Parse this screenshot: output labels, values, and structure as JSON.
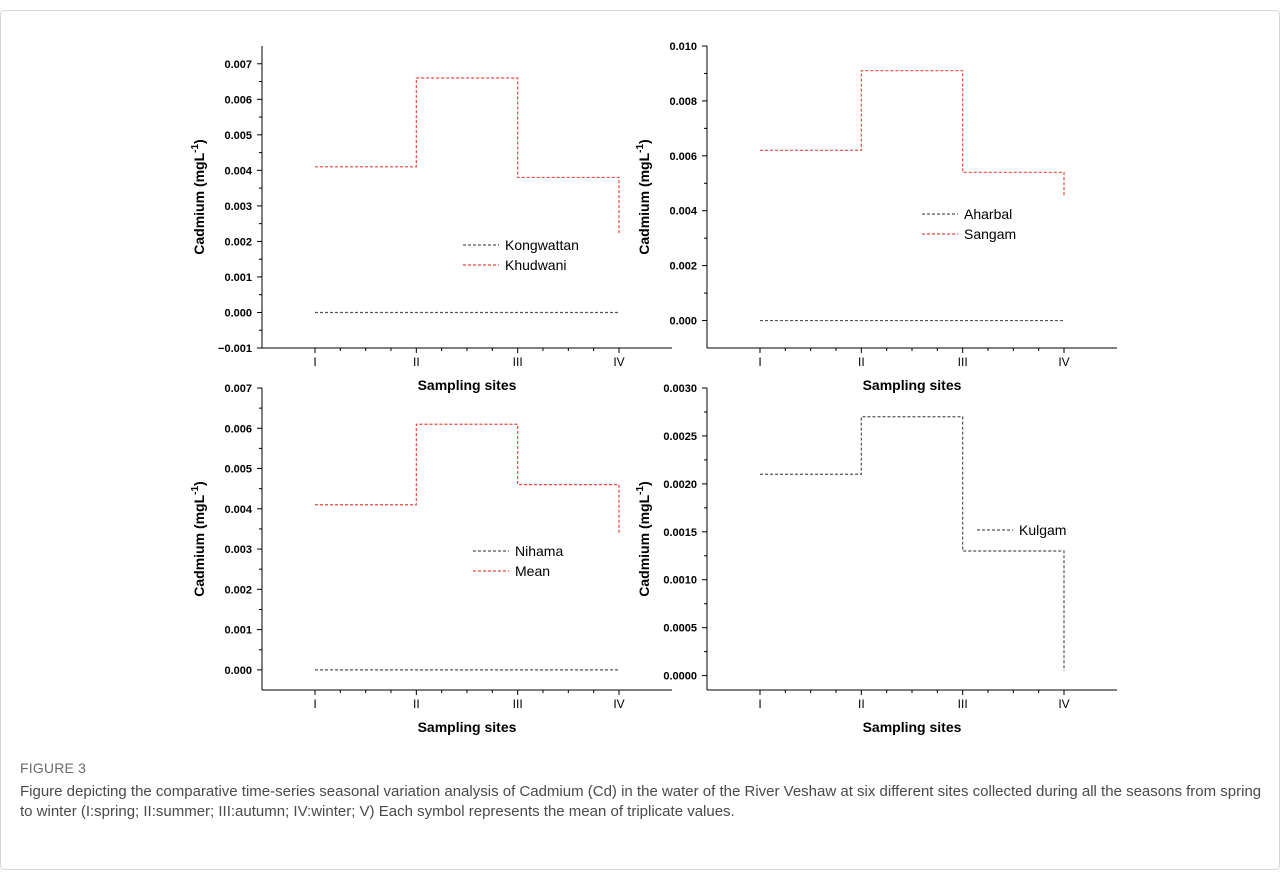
{
  "figure": {
    "label": "FIGURE 3",
    "caption": "Figure depicting the comparative time-series seasonal variation analysis of Cadmium (Cd) in the water of the River Veshaw at six different sites collected during all the seasons from spring to winter (I:spring; II:summer; III:autumn; IV:winter; V) Each symbol represents the mean of triplicate values."
  },
  "colors": {
    "gray": "#555555",
    "red": "#e8483f",
    "axis": "#000000"
  },
  "chart_data": [
    {
      "type": "line",
      "step": true,
      "categories": [
        "I",
        "II",
        "III",
        "IV"
      ],
      "xlabel": "Sampling sites",
      "ylabel": "Cadmium (mgL⁻¹)",
      "ylim": [
        -0.001,
        0.0075
      ],
      "yticks": [
        -0.001,
        0,
        0.001,
        0.002,
        0.003,
        0.004,
        0.005,
        0.006,
        0.007
      ],
      "ytick_labels": [
        "−0.001",
        "0.000",
        "0.001",
        "0.002",
        "0.003",
        "0.004",
        "0.005",
        "0.006",
        "0.007"
      ],
      "legend": "center",
      "series": [
        {
          "name": "Kongwattan",
          "color": "gray",
          "values": [
            0,
            0,
            0,
            0
          ]
        },
        {
          "name": "Khudwani",
          "color": "red",
          "values": [
            0.0041,
            0.0066,
            0.0038,
            0.0022
          ]
        }
      ]
    },
    {
      "type": "line",
      "step": true,
      "categories": [
        "I",
        "II",
        "III",
        "IV"
      ],
      "xlabel": "Sampling sites",
      "ylabel": "Cadmium (mgL⁻¹)",
      "ylim": [
        -0.001,
        0.01
      ],
      "yticks": [
        0,
        0.002,
        0.004,
        0.006,
        0.008,
        0.01
      ],
      "ytick_labels": [
        "0.000",
        "0.002",
        "0.004",
        "0.006",
        "0.008",
        "0.010"
      ],
      "legend": "center-right",
      "series": [
        {
          "name": "Aharbal",
          "color": "gray",
          "values": [
            0,
            0,
            0,
            0
          ]
        },
        {
          "name": "Sangam",
          "color": "red",
          "values": [
            0.0062,
            0.0091,
            0.0054,
            0.0045
          ]
        }
      ]
    },
    {
      "type": "line",
      "step": true,
      "categories": [
        "I",
        "II",
        "III",
        "IV"
      ],
      "xlabel": "Sampling sites",
      "ylabel": "Cadmium (mgL⁻¹)",
      "ylim": [
        -0.0005,
        0.007
      ],
      "yticks": [
        0,
        0.001,
        0.002,
        0.003,
        0.004,
        0.005,
        0.006,
        0.007
      ],
      "ytick_labels": [
        "0.000",
        "0.001",
        "0.002",
        "0.003",
        "0.004",
        "0.005",
        "0.006",
        "0.007"
      ],
      "legend": "center",
      "series": [
        {
          "name": "Nihama",
          "color": "gray",
          "values": [
            0,
            0,
            0,
            0
          ]
        },
        {
          "name": "Mean",
          "color": "red",
          "values": [
            0.0041,
            0.0061,
            0.0046,
            0.0034
          ]
        }
      ]
    },
    {
      "type": "line",
      "step": true,
      "categories": [
        "I",
        "II",
        "III",
        "IV"
      ],
      "xlabel": "Sampling sites",
      "ylabel": "Cadmium (mgL⁻¹)",
      "ylim": [
        -0.00015,
        0.003
      ],
      "yticks": [
        0,
        0.0005,
        0.001,
        0.0015,
        0.002,
        0.0025,
        0.003
      ],
      "ytick_labels": [
        "0.0000",
        "0.0005",
        "0.0010",
        "0.0015",
        "0.0020",
        "0.0025",
        "0.0030"
      ],
      "legend": "center-right",
      "series": [
        {
          "name": "Kulgam",
          "color": "gray",
          "values": [
            0.0021,
            0.0027,
            0.0013,
            5e-05
          ]
        }
      ]
    }
  ]
}
